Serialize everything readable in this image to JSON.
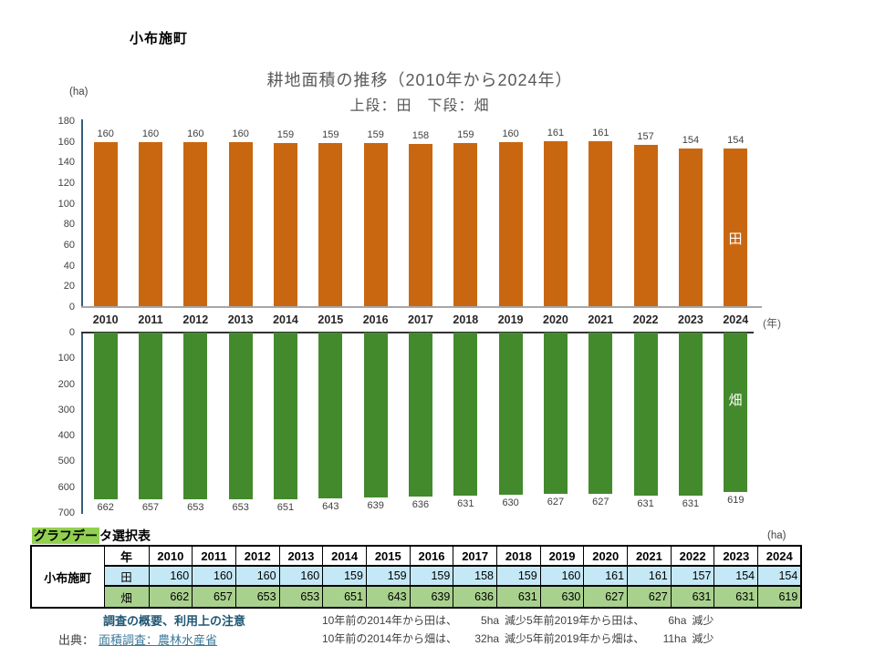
{
  "page": {
    "title": "小布施町"
  },
  "chart_data": [
    {
      "type": "bar",
      "title": "耕地面積の推移（2010年から2024年）",
      "subtitle": "上段：田　下段：畑",
      "series_label": "田",
      "ylabel": "(ha)",
      "categories": [
        "2010",
        "2011",
        "2012",
        "2013",
        "2014",
        "2015",
        "2016",
        "2017",
        "2018",
        "2019",
        "2020",
        "2021",
        "2022",
        "2023",
        "2024"
      ],
      "values": [
        160,
        160,
        160,
        160,
        159,
        159,
        159,
        158,
        159,
        160,
        161,
        161,
        157,
        154,
        154
      ],
      "ylim": [
        0,
        180
      ],
      "ytick_step": 20,
      "bar_color": "#C96711",
      "orientation": "up",
      "grid": false,
      "legend": "none"
    },
    {
      "type": "bar",
      "series_label": "畑",
      "xlabel": "(年)",
      "categories": [
        "2010",
        "2011",
        "2012",
        "2013",
        "2014",
        "2015",
        "2016",
        "2017",
        "2018",
        "2019",
        "2020",
        "2021",
        "2022",
        "2023",
        "2024"
      ],
      "values": [
        662,
        657,
        653,
        653,
        651,
        643,
        639,
        636,
        631,
        630,
        627,
        627,
        631,
        631,
        619
      ],
      "ylim": [
        0,
        700
      ],
      "ytick_step": 100,
      "bar_color": "#438A2D",
      "orientation": "down",
      "grid": false,
      "legend": "none"
    }
  ],
  "table": {
    "caption_highlight": "グラフデー",
    "caption_rest": "タ選択表",
    "unit": "(ha)",
    "row_header": "小布施町",
    "corner_label": "年",
    "row_labels": [
      "田",
      "畑"
    ],
    "row_colors": [
      "#C5E8F6",
      "#A9D18E"
    ]
  },
  "footer": {
    "survey_link": "調査の概要、利用上の注意",
    "source_label": "出典：",
    "source_link": "面積調査：農林水産省",
    "notes": [
      {
        "label": "10年前の2014年から田は、",
        "amount": "5ha",
        "suffix": "減少"
      },
      {
        "label": "10年前の2014年から畑は、",
        "amount": "32ha",
        "suffix": "減少"
      },
      {
        "label": "5年前2019年から田は、",
        "amount": "6ha",
        "suffix": "減少"
      },
      {
        "label": "5年前2019年から畑は、",
        "amount": "11ha",
        "suffix": "減少"
      }
    ]
  },
  "colors": {
    "title_gray": "#595959",
    "tick_gray": "#404040",
    "axis_line": "#365F7A",
    "baseline_top": "#A6A6A6",
    "baseline_bottom": "#333333",
    "bar_ta": "#C96711",
    "bar_hatake": "#438A2D",
    "highlight": "#92D050",
    "survey_link": "#1F5674",
    "source_link": "#3C7A99"
  }
}
